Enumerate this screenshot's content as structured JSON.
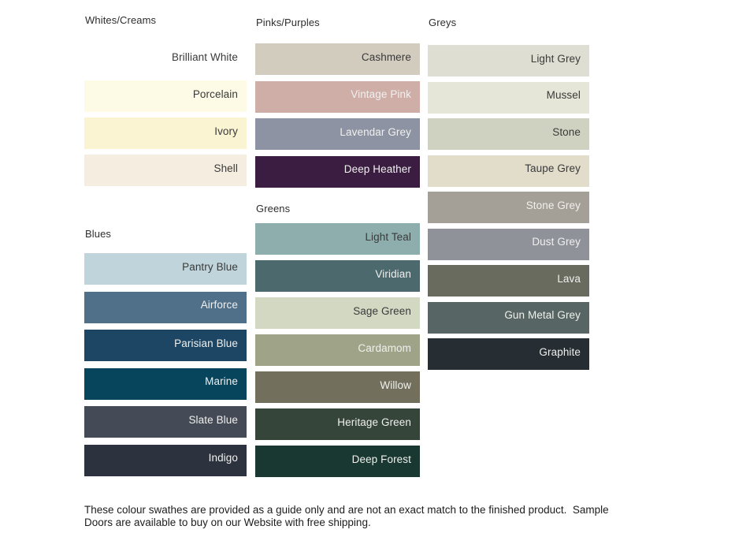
{
  "groups": {
    "whites_creams": {
      "title": "Whites/Creams",
      "swatches": [
        {
          "name": "Brilliant White",
          "color": "#FFFFFF",
          "label": "dark"
        },
        {
          "name": "Porcelain",
          "color": "#FDFAE6",
          "label": "dark"
        },
        {
          "name": "Ivory",
          "color": "#FAF4D2",
          "label": "dark"
        },
        {
          "name": "Shell",
          "color": "#F5EDDF",
          "label": "dark"
        }
      ]
    },
    "blues": {
      "title": "Blues",
      "swatches": [
        {
          "name": "Pantry Blue",
          "color": "#C0D5DB",
          "label": "dark"
        },
        {
          "name": "Airforce",
          "color": "#50708A",
          "label": "light"
        },
        {
          "name": "Parisian Blue",
          "color": "#1C4664",
          "label": "light"
        },
        {
          "name": "Marine",
          "color": "#06455C",
          "label": "light"
        },
        {
          "name": "Slate Blue",
          "color": "#444A56",
          "label": "light"
        },
        {
          "name": "Indigo",
          "color": "#2C333F",
          "label": "light"
        }
      ]
    },
    "pinks_purples": {
      "title": "Pinks/Purples",
      "swatches": [
        {
          "name": "Cashmere",
          "color": "#D2CCBE",
          "label": "dark"
        },
        {
          "name": "Vintage Pink",
          "color": "#CFAEA8",
          "label": "light"
        },
        {
          "name": "Lavendar Grey",
          "color": "#8E93A3",
          "label": "light"
        },
        {
          "name": "Deep Heather",
          "color": "#3A1D41",
          "label": "light"
        }
      ]
    },
    "greens": {
      "title": "Greens",
      "swatches": [
        {
          "name": "Light Teal",
          "color": "#8EAEAD",
          "label": "dark"
        },
        {
          "name": "Viridian",
          "color": "#4C696E",
          "label": "light"
        },
        {
          "name": "Sage Green",
          "color": "#D3D8C3",
          "label": "dark"
        },
        {
          "name": "Cardamom",
          "color": "#9FA388",
          "label": "light"
        },
        {
          "name": "Willow",
          "color": "#72705C",
          "label": "light"
        },
        {
          "name": "Heritage Green",
          "color": "#364539",
          "label": "light"
        },
        {
          "name": "Deep Forest",
          "color": "#193831",
          "label": "light"
        }
      ]
    },
    "greys": {
      "title": "Greys",
      "swatches": [
        {
          "name": "Light Grey",
          "color": "#DEDED3",
          "label": "dark"
        },
        {
          "name": "Mussel",
          "color": "#E5E6D7",
          "label": "dark"
        },
        {
          "name": "Stone",
          "color": "#CFD2C1",
          "label": "dark"
        },
        {
          "name": "Taupe Grey",
          "color": "#E2DCCA",
          "label": "dark"
        },
        {
          "name": "Stone Grey",
          "color": "#A5A097",
          "label": "light"
        },
        {
          "name": "Dust Grey",
          "color": "#90929A",
          "label": "light"
        },
        {
          "name": "Lava",
          "color": "#6A6B5F",
          "label": "light"
        },
        {
          "name": "Gun Metal Grey",
          "color": "#576664",
          "label": "light"
        },
        {
          "name": "Graphite",
          "color": "#262D33",
          "label": "light"
        }
      ]
    }
  },
  "footer": {
    "text": "These colour swathes are provided as a guide only and are not an exact match to the finished product.  Sample Doors are available to buy on our Website with free shipping."
  }
}
